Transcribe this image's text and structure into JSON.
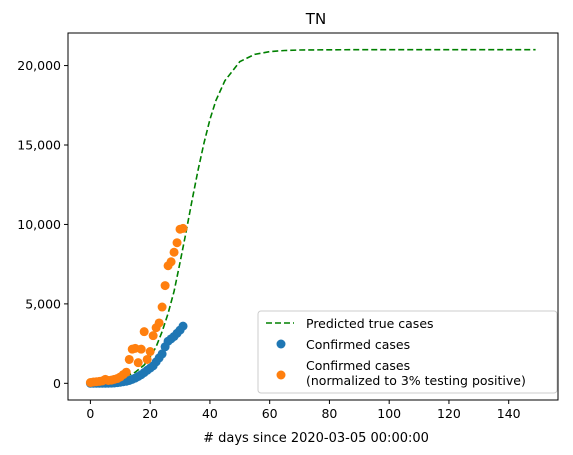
{
  "chart_data": {
    "type": "scatter",
    "title": "TN",
    "xlabel": "# days since 2020-03-05 00:00:00",
    "ylabel": "",
    "xlim": [
      -7.5,
      156.5
    ],
    "ylim": [
      -1050,
      22050
    ],
    "xticks": [
      0,
      20,
      40,
      60,
      80,
      100,
      120,
      140
    ],
    "yticks": [
      0,
      5000,
      10000,
      15000,
      20000
    ],
    "ytick_labels": [
      "0",
      "5,000",
      "10,000",
      "15,000",
      "20,000"
    ],
    "grid": false,
    "legend_position": "lower-right",
    "series": [
      {
        "name": "Predicted true cases",
        "kind": "line",
        "style": "dashed",
        "color": "#008000",
        "x": [
          0,
          5,
          10,
          15,
          18,
          20,
          22,
          24,
          26,
          28,
          30,
          32,
          34,
          36,
          38,
          40,
          42,
          45,
          50,
          55,
          60,
          65,
          70,
          80,
          90,
          100,
          120,
          149
        ],
        "y": [
          60,
          130,
          280,
          700,
          1150,
          1650,
          2300,
          3250,
          4400,
          5800,
          7600,
          9500,
          11500,
          13400,
          15100,
          16600,
          17800,
          19050,
          20250,
          20700,
          20880,
          20950,
          20980,
          20995,
          21000,
          21000,
          21000,
          21000
        ]
      },
      {
        "name": "Confirmed cases",
        "kind": "scatter",
        "color": "#1f77b4",
        "x": [
          0,
          1,
          2,
          3,
          4,
          5,
          6,
          7,
          8,
          9,
          10,
          11,
          12,
          13,
          14,
          15,
          16,
          17,
          18,
          19,
          20,
          21,
          22,
          23,
          24,
          25,
          26,
          27,
          28,
          29,
          30,
          31
        ],
        "y": [
          1,
          1,
          1,
          1,
          2,
          3,
          5,
          10,
          20,
          40,
          70,
          100,
          130,
          180,
          250,
          330,
          430,
          540,
          680,
          820,
          960,
          1100,
          1350,
          1600,
          1850,
          2300,
          2650,
          2800,
          2950,
          3150,
          3350,
          3600
        ]
      },
      {
        "name": "Confirmed cases\n(normalized to 3% testing positive)",
        "kind": "scatter",
        "color": "#ff7f0e",
        "x": [
          0,
          1,
          2,
          3,
          4,
          5,
          6,
          7,
          8,
          9,
          10,
          11,
          12,
          13,
          14,
          15,
          16,
          17,
          18,
          19,
          20,
          21,
          22,
          23,
          24,
          25,
          26,
          27,
          28,
          29,
          30,
          31
        ],
        "y": [
          50,
          80,
          100,
          120,
          150,
          250,
          180,
          200,
          250,
          300,
          400,
          550,
          700,
          1500,
          2150,
          2200,
          1300,
          2150,
          3250,
          1500,
          2000,
          3000,
          3500,
          3800,
          4800,
          6150,
          7400,
          7650,
          8250,
          8850,
          9700,
          9750
        ]
      }
    ]
  }
}
